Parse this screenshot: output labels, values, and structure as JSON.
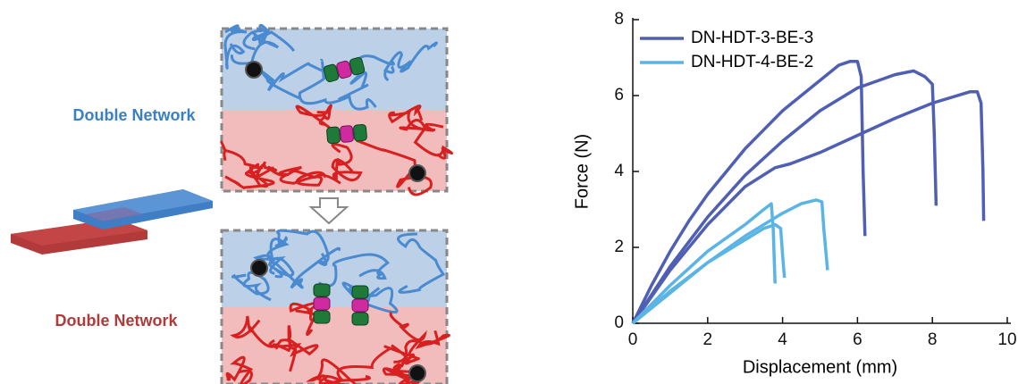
{
  "schematic": {
    "labels": [
      "Double Network",
      "Double Network"
    ]
  },
  "chart_data": {
    "type": "line",
    "xlabel": "Displacement (mm)",
    "ylabel": "Force (N)",
    "xlim": [
      0,
      10
    ],
    "xticks": [
      0,
      2,
      4,
      6,
      8,
      10
    ],
    "ylim": [
      0,
      8
    ],
    "yticks": [
      0,
      2,
      4,
      6,
      8
    ],
    "legend": "upper left",
    "series": [
      {
        "name": "DN-HDT-3-BE-3",
        "color": "#4f5fb3",
        "x": [
          0,
          0.5,
          1,
          1.5,
          2,
          2.5,
          3,
          3.5,
          4,
          4.5,
          5,
          5.5,
          5.8,
          6.0,
          6.1,
          6.15,
          6.2
        ],
        "values": [
          0,
          1.0,
          1.9,
          2.7,
          3.4,
          4.0,
          4.6,
          5.1,
          5.6,
          6.0,
          6.4,
          6.8,
          6.9,
          6.9,
          6.5,
          4.0,
          2.3
        ]
      },
      {
        "color": "#4f5fb3",
        "x": [
          0,
          1,
          2,
          3,
          4,
          5,
          6,
          7,
          7.5,
          7.8,
          8.0,
          8.05,
          8.1
        ],
        "values": [
          0,
          1.5,
          2.8,
          3.9,
          4.8,
          5.6,
          6.2,
          6.55,
          6.65,
          6.5,
          6.3,
          5.0,
          3.1
        ]
      },
      {
        "color": "#4f5fb3",
        "x": [
          0,
          1,
          2,
          3,
          3.8,
          4.2,
          5,
          6,
          7,
          8,
          9,
          9.2,
          9.3,
          9.35,
          9.37
        ],
        "values": [
          0,
          1.4,
          2.6,
          3.6,
          4.1,
          4.2,
          4.5,
          4.95,
          5.4,
          5.8,
          6.1,
          6.1,
          5.8,
          4.0,
          2.7
        ]
      },
      {
        "name": "DN-HDT-4-BE-2",
        "color": "#5ab4e5",
        "x": [
          0,
          1,
          2,
          3,
          3.5,
          3.7,
          3.75,
          3.8
        ],
        "values": [
          0,
          1.0,
          1.9,
          2.6,
          3.0,
          3.15,
          2.5,
          1.05
        ]
      },
      {
        "color": "#5ab4e5",
        "x": [
          0,
          1,
          2,
          3,
          3.5,
          3.8,
          3.95,
          4.0,
          4.05
        ],
        "values": [
          0,
          0.85,
          1.6,
          2.2,
          2.5,
          2.6,
          2.5,
          1.8,
          1.2
        ]
      },
      {
        "color": "#5ab4e5",
        "x": [
          0,
          1,
          2,
          3,
          3.5,
          4,
          4.5,
          4.9,
          5.05,
          5.1,
          5.2
        ],
        "values": [
          0,
          0.8,
          1.6,
          2.3,
          2.6,
          2.9,
          3.15,
          3.25,
          3.2,
          2.5,
          1.4
        ]
      }
    ]
  }
}
